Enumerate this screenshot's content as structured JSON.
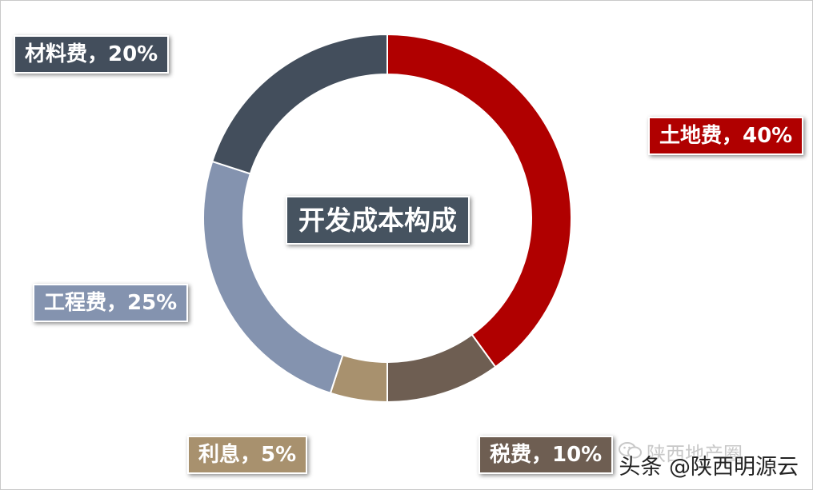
{
  "chart_data": {
    "type": "donut",
    "title": "开发成本构成",
    "slices": [
      {
        "label": "土地费，40%",
        "value": 40,
        "color": "#b00000"
      },
      {
        "label": "税费，10%",
        "value": 10,
        "color": "#6e5e52"
      },
      {
        "label": "利息，5%",
        "value": 5,
        "color": "#a8916e"
      },
      {
        "label": "工程费，25%",
        "value": 25,
        "color": "#8493af"
      },
      {
        "label": "材料费，20%",
        "value": 20,
        "color": "#434e5c"
      }
    ],
    "center_label_color": "#465360"
  },
  "watermark": {
    "text": "头条 @陕西明源云",
    "faint_text": "陕西地产圈"
  }
}
